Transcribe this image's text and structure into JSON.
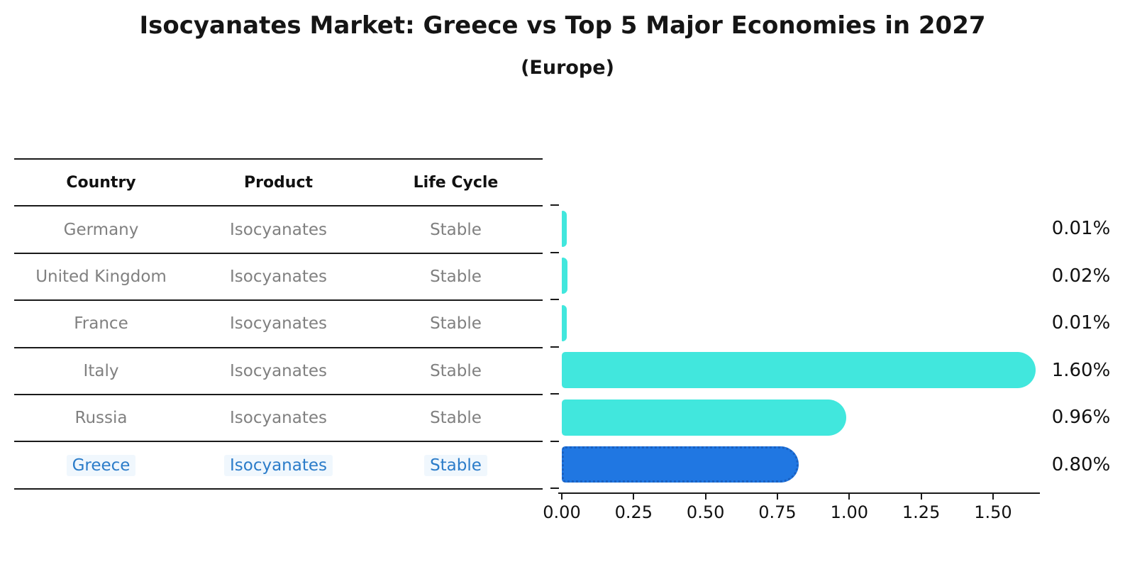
{
  "title": "Isocyanates Market: Greece vs Top 5 Major Economies in 2027",
  "subtitle": "(Europe)",
  "table": {
    "headers": {
      "country": "Country",
      "product": "Product",
      "life_cycle": "Life Cycle"
    },
    "rows": [
      {
        "country": "Germany",
        "product": "Isocyanates",
        "life_cycle": "Stable",
        "highlight": false
      },
      {
        "country": "United Kingdom",
        "product": "Isocyanates",
        "life_cycle": "Stable",
        "highlight": false
      },
      {
        "country": "France",
        "product": "Isocyanates",
        "life_cycle": "Stable",
        "highlight": false
      },
      {
        "country": "Italy",
        "product": "Isocyanates",
        "life_cycle": "Stable",
        "highlight": false
      },
      {
        "country": "Russia",
        "product": "Isocyanates",
        "life_cycle": "Stable",
        "highlight": false
      },
      {
        "country": "Greece",
        "product": "Isocyanates",
        "life_cycle": "Stable",
        "highlight": true
      }
    ]
  },
  "chart_data": {
    "type": "bar",
    "orientation": "horizontal",
    "title": "Isocyanates Market: Greece vs Top 5 Major Economies in 2027 (Europe)",
    "categories": [
      "Germany",
      "United Kingdom",
      "France",
      "Italy",
      "Russia",
      "Greece"
    ],
    "values": [
      0.01,
      0.02,
      0.01,
      1.6,
      0.96,
      0.8
    ],
    "value_labels": [
      "0.01%",
      "0.02%",
      "0.01%",
      "1.60%",
      "0.96%",
      "0.80%"
    ],
    "unit": "%",
    "highlight_category": "Greece",
    "highlight_index": 5,
    "x_tick_labels": [
      "0.00",
      "0.25",
      "0.50",
      "0.75",
      "1.00",
      "1.25",
      "1.50"
    ],
    "x_tick_values": [
      0.0,
      0.25,
      0.5,
      0.75,
      1.0,
      1.25,
      1.5
    ],
    "xlim": [
      0.0,
      1.62
    ],
    "grid": false,
    "legend": false,
    "bar_color": "#41e7dd",
    "highlight_bar_color": "#2077e2",
    "highlight_bar_edge_color": "#1a60c0",
    "highlight_text_color": "#2b7cc9",
    "text_color": "#808080",
    "axis_color": "#1a1a1a"
  }
}
